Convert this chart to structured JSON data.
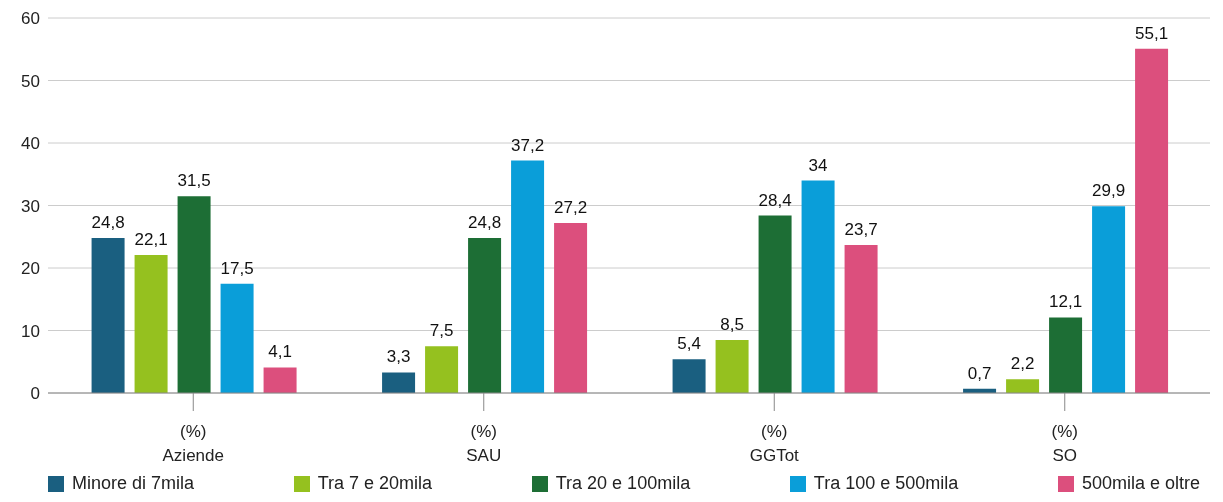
{
  "chart_data": {
    "type": "bar",
    "categories": [
      "(%)\nAziende",
      "(%)\nSAU",
      "(%)\nGGTot",
      "(%)\nSO"
    ],
    "series": [
      {
        "name": "Minore di 7mila",
        "color": "#1a5f80",
        "values": [
          24.8,
          3.3,
          5.4,
          0.7
        ],
        "value_labels": [
          "24,8",
          "3,3",
          "5,4",
          "0,7"
        ]
      },
      {
        "name": "Tra 7 e 20mila",
        "color": "#95c11f",
        "values": [
          22.1,
          7.5,
          8.5,
          2.2
        ],
        "value_labels": [
          "22,1",
          "7,5",
          "8,5",
          "2,2"
        ]
      },
      {
        "name": "Tra 20 e 100mila",
        "color": "#1d6e35",
        "values": [
          31.5,
          24.8,
          28.4,
          12.1
        ],
        "value_labels": [
          "31,5",
          "24,8",
          "28,4",
          "12,1"
        ]
      },
      {
        "name": "Tra 100 e 500mila",
        "color": "#0a9ed9",
        "values": [
          17.5,
          37.2,
          34,
          29.9
        ],
        "value_labels": [
          "17,5",
          "37,2",
          "34",
          "29,9"
        ]
      },
      {
        "name": "500mila e oltre",
        "color": "#dc4f7d",
        "values": [
          4.1,
          27.2,
          23.7,
          55.1
        ],
        "value_labels": [
          "4,1",
          "27,2",
          "23,7",
          "55,1"
        ]
      }
    ],
    "ylim": [
      0,
      60
    ],
    "yticks": [
      0,
      10,
      20,
      30,
      40,
      50,
      60
    ],
    "grid": "y",
    "legend": "bottom"
  }
}
